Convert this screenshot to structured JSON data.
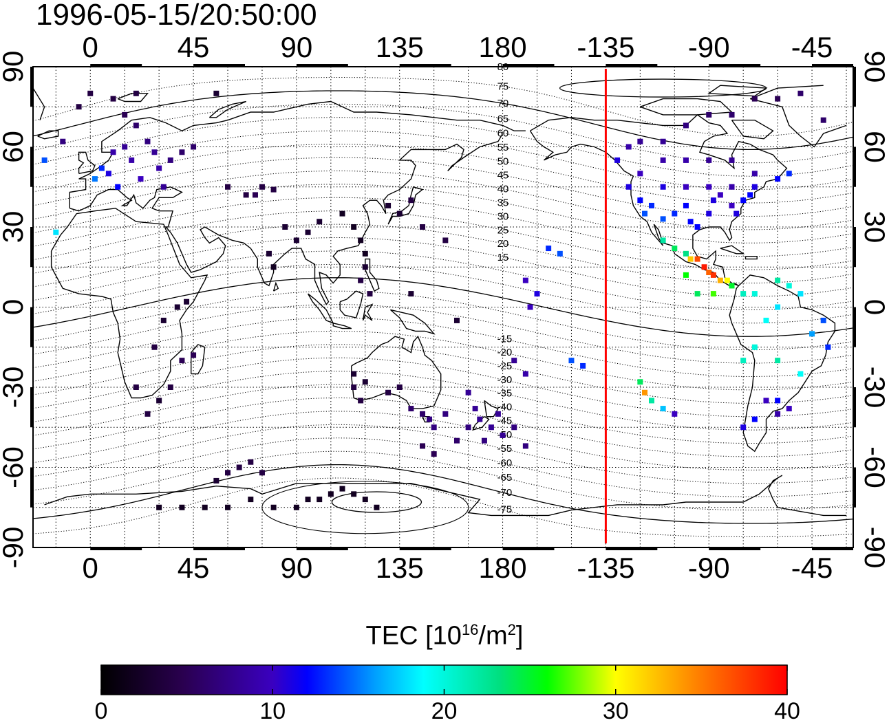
{
  "title": "1996-05-15/20:50:00",
  "map": {
    "lon_ticks": [
      0,
      45,
      90,
      135,
      180,
      -135,
      -90,
      -45
    ],
    "lat_ticks": [
      90,
      60,
      30,
      0,
      -30,
      -60,
      -90
    ],
    "terminator_lon": -135,
    "mlat_labels": [
      80,
      75,
      70,
      65,
      60,
      55,
      50,
      45,
      40,
      35,
      30,
      25,
      20,
      15,
      -15,
      -20,
      -25,
      -30,
      -35,
      -40,
      -45,
      -50,
      -55,
      -60,
      -65,
      -70,
      -75
    ],
    "tec_points": [
      [
        -20,
        55,
        14
      ],
      [
        -15,
        28,
        18
      ],
      [
        -12,
        62,
        7
      ],
      [
        -5,
        75,
        4
      ],
      [
        2,
        48,
        15
      ],
      [
        5,
        52,
        13
      ],
      [
        8,
        50,
        11
      ],
      [
        10,
        58,
        9
      ],
      [
        12,
        45,
        12
      ],
      [
        15,
        60,
        8
      ],
      [
        18,
        55,
        9
      ],
      [
        20,
        68,
        6
      ],
      [
        22,
        48,
        10
      ],
      [
        25,
        62,
        7
      ],
      [
        28,
        58,
        8
      ],
      [
        30,
        52,
        9
      ],
      [
        15,
        72,
        5
      ],
      [
        10,
        78,
        4
      ],
      [
        32,
        45,
        8
      ],
      [
        35,
        55,
        7
      ],
      [
        40,
        58,
        6
      ],
      [
        45,
        60,
        6
      ],
      [
        55,
        80,
        3
      ],
      [
        60,
        45,
        4
      ],
      [
        68,
        42,
        4
      ],
      [
        72,
        42,
        5
      ],
      [
        75,
        45,
        4
      ],
      [
        80,
        44,
        4
      ],
      [
        80,
        15,
        2
      ],
      [
        78,
        20,
        3
      ],
      [
        85,
        30,
        3
      ],
      [
        90,
        25,
        3
      ],
      [
        95,
        28,
        3
      ],
      [
        100,
        32,
        3
      ],
      [
        110,
        35,
        2
      ],
      [
        115,
        30,
        2
      ],
      [
        118,
        25,
        2
      ],
      [
        120,
        20,
        2
      ],
      [
        120,
        15,
        3
      ],
      [
        118,
        10,
        4
      ],
      [
        122,
        5,
        4
      ],
      [
        130,
        38,
        3
      ],
      [
        135,
        35,
        3
      ],
      [
        140,
        40,
        4
      ],
      [
        145,
        30,
        4
      ],
      [
        155,
        25,
        4
      ],
      [
        160,
        -5,
        3
      ],
      [
        140,
        5,
        3
      ],
      [
        -170,
        10,
        10
      ],
      [
        -165,
        5,
        11
      ],
      [
        -168,
        0,
        10
      ],
      [
        -175,
        -20,
        8
      ],
      [
        -170,
        -25,
        9
      ],
      [
        -160,
        22,
        13
      ],
      [
        -155,
        20,
        14
      ],
      [
        -150,
        -20,
        14
      ],
      [
        -145,
        -22,
        13
      ],
      [
        -125,
        45,
        11
      ],
      [
        -120,
        40,
        12
      ],
      [
        -118,
        35,
        14
      ],
      [
        -115,
        38,
        13
      ],
      [
        -110,
        33,
        14
      ],
      [
        -105,
        35,
        13
      ],
      [
        -100,
        38,
        12
      ],
      [
        -98,
        32,
        12
      ],
      [
        -95,
        30,
        12
      ],
      [
        -90,
        35,
        11
      ],
      [
        -88,
        40,
        11
      ],
      [
        -85,
        42,
        10
      ],
      [
        -80,
        38,
        10
      ],
      [
        -78,
        35,
        11
      ],
      [
        -75,
        40,
        12
      ],
      [
        -72,
        42,
        12
      ],
      [
        -70,
        45,
        11
      ],
      [
        -80,
        45,
        9
      ],
      [
        -90,
        45,
        10
      ],
      [
        -100,
        45,
        10
      ],
      [
        -110,
        45,
        11
      ],
      [
        -120,
        50,
        10
      ],
      [
        -130,
        55,
        11
      ],
      [
        -125,
        60,
        9
      ],
      [
        -110,
        55,
        9
      ],
      [
        -100,
        55,
        9
      ],
      [
        -90,
        55,
        8
      ],
      [
        -80,
        55,
        8
      ],
      [
        -70,
        50,
        9
      ],
      [
        -60,
        48,
        12
      ],
      [
        -55,
        50,
        13
      ],
      [
        -120,
        62,
        8
      ],
      [
        -110,
        62,
        8
      ],
      [
        -100,
        68,
        7
      ],
      [
        -90,
        72,
        6
      ],
      [
        -80,
        72,
        6
      ],
      [
        -70,
        78,
        5
      ],
      [
        -60,
        78,
        5
      ],
      [
        -50,
        80,
        6
      ],
      [
        -40,
        70,
        6
      ],
      [
        -110,
        25,
        22
      ],
      [
        -105,
        22,
        24
      ],
      [
        -100,
        20,
        23
      ],
      [
        -98,
        18,
        32
      ],
      [
        -95,
        18,
        37
      ],
      [
        -92,
        15,
        39
      ],
      [
        -90,
        13,
        36
      ],
      [
        -88,
        12,
        38
      ],
      [
        -85,
        10,
        33
      ],
      [
        -82,
        10,
        30
      ],
      [
        -100,
        12,
        26
      ],
      [
        -95,
        5,
        24
      ],
      [
        -88,
        5,
        27
      ],
      [
        -80,
        8,
        25
      ],
      [
        -75,
        5,
        21
      ],
      [
        -70,
        5,
        20
      ],
      [
        -60,
        10,
        22
      ],
      [
        -55,
        8,
        20
      ],
      [
        -50,
        5,
        18
      ],
      [
        -60,
        0,
        18
      ],
      [
        -65,
        -5,
        19
      ],
      [
        -70,
        -15,
        20
      ],
      [
        -75,
        -20,
        21
      ],
      [
        -60,
        -20,
        22
      ],
      [
        -50,
        -25,
        19
      ],
      [
        -45,
        -10,
        16
      ],
      [
        -40,
        -5,
        14
      ],
      [
        -38,
        -15,
        13
      ],
      [
        -120,
        -28,
        24
      ],
      [
        -118,
        -32,
        34
      ],
      [
        -115,
        -35,
        22
      ],
      [
        -110,
        -38,
        17
      ],
      [
        -105,
        -40,
        10
      ],
      [
        -60,
        -40,
        9
      ],
      [
        -55,
        -38,
        10
      ],
      [
        -65,
        -35,
        10
      ],
      [
        0,
        80,
        4
      ],
      [
        20,
        80,
        4
      ],
      [
        -60,
        -35,
        12
      ],
      [
        -75,
        -45,
        11
      ],
      [
        -70,
        -42,
        12
      ],
      [
        30,
        -35,
        3
      ],
      [
        25,
        -40,
        4
      ],
      [
        20,
        -30,
        4
      ],
      [
        35,
        -30,
        4
      ],
      [
        40,
        -20,
        5
      ],
      [
        45,
        -18,
        5
      ],
      [
        28,
        -15,
        4
      ],
      [
        32,
        -5,
        3
      ],
      [
        38,
        0,
        3
      ],
      [
        42,
        2,
        3
      ],
      [
        55,
        -65,
        3
      ],
      [
        60,
        -62,
        4
      ],
      [
        65,
        -60,
        4
      ],
      [
        70,
        -58,
        4
      ],
      [
        75,
        -62,
        4
      ],
      [
        30,
        -75,
        2
      ],
      [
        40,
        -75,
        2
      ],
      [
        50,
        -75,
        2
      ],
      [
        60,
        -75,
        2
      ],
      [
        70,
        -72,
        2
      ],
      [
        80,
        -75,
        2
      ],
      [
        90,
        -75,
        2
      ],
      [
        95,
        -72,
        2
      ],
      [
        100,
        -72,
        2
      ],
      [
        105,
        -70,
        2
      ],
      [
        110,
        -68,
        2
      ],
      [
        115,
        -70,
        2
      ],
      [
        120,
        -72,
        2
      ],
      [
        125,
        -75,
        2
      ],
      [
        115,
        -25,
        3
      ],
      [
        115,
        -30,
        4
      ],
      [
        118,
        -35,
        4
      ],
      [
        120,
        -28,
        3
      ],
      [
        130,
        -32,
        4
      ],
      [
        135,
        -30,
        4
      ],
      [
        140,
        -38,
        6
      ],
      [
        145,
        -40,
        6
      ],
      [
        148,
        -42,
        7
      ],
      [
        150,
        -45,
        7
      ],
      [
        155,
        -40,
        7
      ],
      [
        150,
        -55,
        5
      ],
      [
        145,
        -52,
        5
      ],
      [
        160,
        -50,
        6
      ],
      [
        165,
        -45,
        7
      ],
      [
        170,
        -42,
        8
      ],
      [
        172,
        -50,
        7
      ],
      [
        175,
        -45,
        8
      ],
      [
        178,
        -40,
        8
      ],
      [
        180,
        -48,
        8
      ],
      [
        -175,
        -45,
        7
      ],
      [
        -170,
        -52,
        7
      ],
      [
        168,
        -38,
        8
      ],
      [
        165,
        -32,
        8
      ]
    ]
  },
  "colorbar": {
    "title_main": "TEC  [10",
    "title_exp1": "16",
    "title_mid": "/m",
    "title_exp2": "2",
    "title_end": "]",
    "min": 0,
    "max": 40,
    "ticks": [
      "0",
      "10",
      "20",
      "30",
      "40"
    ]
  }
}
